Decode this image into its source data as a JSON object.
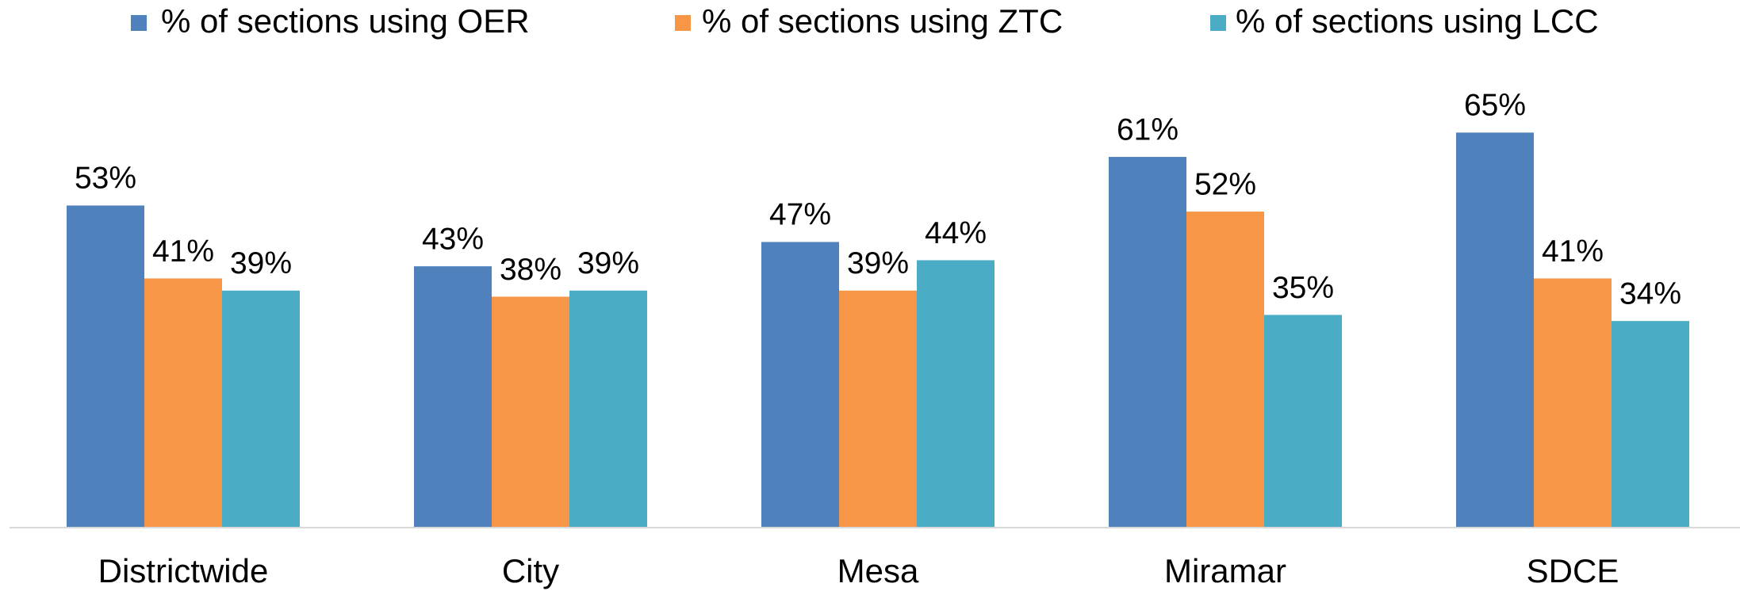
{
  "chart_data": {
    "type": "bar",
    "categories": [
      "Districtwide",
      "City",
      "Mesa",
      "Miramar",
      "SDCE"
    ],
    "series": [
      {
        "name": "% of sections using OER",
        "color": "#4f81bd",
        "values": [
          53,
          43,
          47,
          61,
          65
        ],
        "value_labels": [
          "53%",
          "43%",
          "47%",
          "61%",
          "65%"
        ]
      },
      {
        "name": "% of sections using ZTC",
        "color": "#f79646",
        "values": [
          41,
          38,
          39,
          52,
          41
        ],
        "value_labels": [
          "41%",
          "38%",
          "39%",
          "52%",
          "41%"
        ]
      },
      {
        "name": "% of sections using LCC",
        "color": "#4bacc6",
        "values": [
          39,
          39,
          44,
          35,
          34
        ],
        "value_labels": [
          "39%",
          "39%",
          "44%",
          "35%",
          "34%"
        ]
      }
    ],
    "ylim": [
      0,
      70
    ],
    "legend": "top"
  }
}
